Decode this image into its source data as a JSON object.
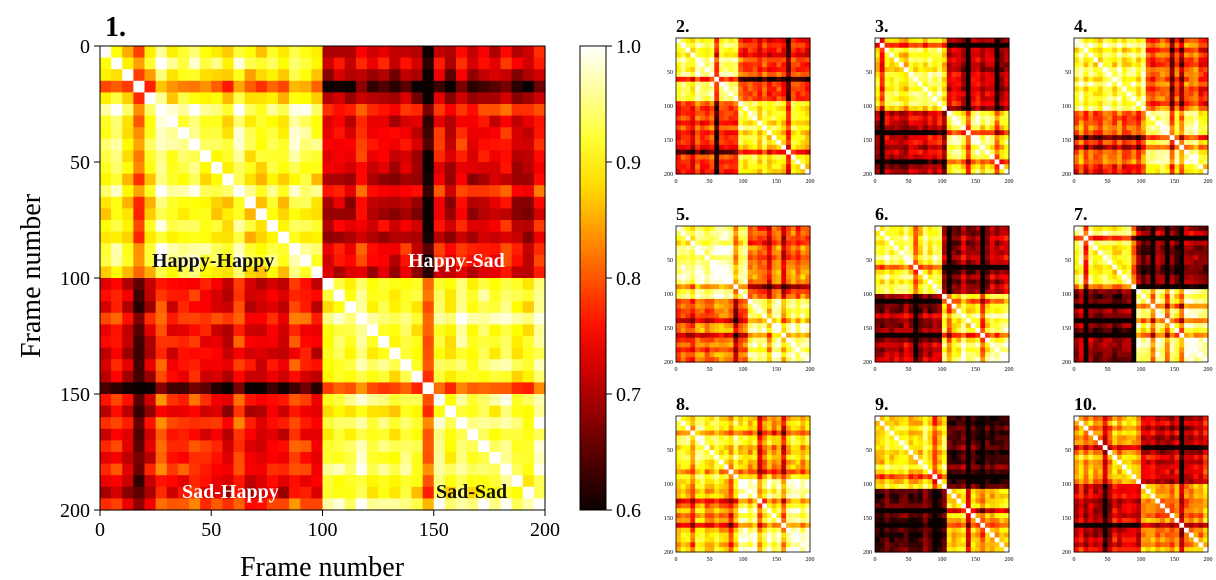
{
  "chart_data": [
    {
      "type": "heatmap",
      "panel_label": "1.",
      "xlabel": "Frame number",
      "ylabel": "Frame number",
      "xlim": [
        0,
        200
      ],
      "ylim": [
        0,
        200
      ],
      "xticks": [
        0,
        50,
        100,
        150,
        200
      ],
      "yticks": [
        0,
        50,
        100,
        150,
        200
      ],
      "colorbar": {
        "range": [
          0.6,
          1.0
        ],
        "ticks": [
          "0.6",
          "0.7",
          "0.8",
          "0.9",
          "1.0"
        ]
      },
      "blocks": [
        {
          "label": "Happy-Happy",
          "x": [
            0,
            100
          ],
          "y": [
            0,
            100
          ],
          "mean": 0.93
        },
        {
          "label": "Happy-Sad",
          "x": [
            100,
            200
          ],
          "y": [
            0,
            100
          ],
          "mean": 0.74
        },
        {
          "label": "Sad-Happy",
          "x": [
            0,
            100
          ],
          "y": [
            100,
            200
          ],
          "mean": 0.76
        },
        {
          "label": "Sad-Sad",
          "x": [
            100,
            200
          ],
          "y": [
            100,
            200
          ],
          "mean": 0.93
        }
      ]
    },
    {
      "type": "heatmap",
      "panel_label": "2.",
      "ticks": [
        "0",
        "50",
        "100",
        "150",
        "200"
      ],
      "boundary": 95,
      "within": 0.92,
      "between": 0.78
    },
    {
      "type": "heatmap",
      "panel_label": "3.",
      "ticks": [
        "0",
        "50",
        "100",
        "150",
        "200"
      ],
      "boundary": 110,
      "within": 0.9,
      "between": 0.7
    },
    {
      "type": "heatmap",
      "panel_label": "4.",
      "ticks": [
        "0",
        "50",
        "100",
        "150",
        "200"
      ],
      "boundary": 105,
      "within": 0.93,
      "between": 0.8
    },
    {
      "type": "heatmap",
      "panel_label": "5.",
      "ticks": [
        "0",
        "50",
        "100",
        "150",
        "200"
      ],
      "boundary": 105,
      "within": 0.94,
      "between": 0.8
    },
    {
      "type": "heatmap",
      "panel_label": "6.",
      "ticks": [
        "0",
        "50",
        "100",
        "150",
        "200"
      ],
      "boundary": 100,
      "within": 0.93,
      "between": 0.7
    },
    {
      "type": "heatmap",
      "panel_label": "7.",
      "ticks": [
        "0",
        "50",
        "100",
        "150",
        "200"
      ],
      "boundary": 95,
      "within": 0.94,
      "between": 0.68
    },
    {
      "type": "heatmap",
      "panel_label": "8.",
      "ticks": [
        "0",
        "50",
        "100",
        "150",
        "200"
      ],
      "boundary": 95,
      "within": 0.93,
      "between": 0.86
    },
    {
      "type": "heatmap",
      "panel_label": "9.",
      "ticks": [
        "0",
        "50",
        "100",
        "150",
        "200"
      ],
      "boundary": 110,
      "within": 0.9,
      "between": 0.66
    },
    {
      "type": "heatmap",
      "panel_label": "10.",
      "ticks": [
        "0",
        "50",
        "100",
        "150",
        "200"
      ],
      "boundary": 100,
      "within": 0.86,
      "between": 0.74
    }
  ]
}
